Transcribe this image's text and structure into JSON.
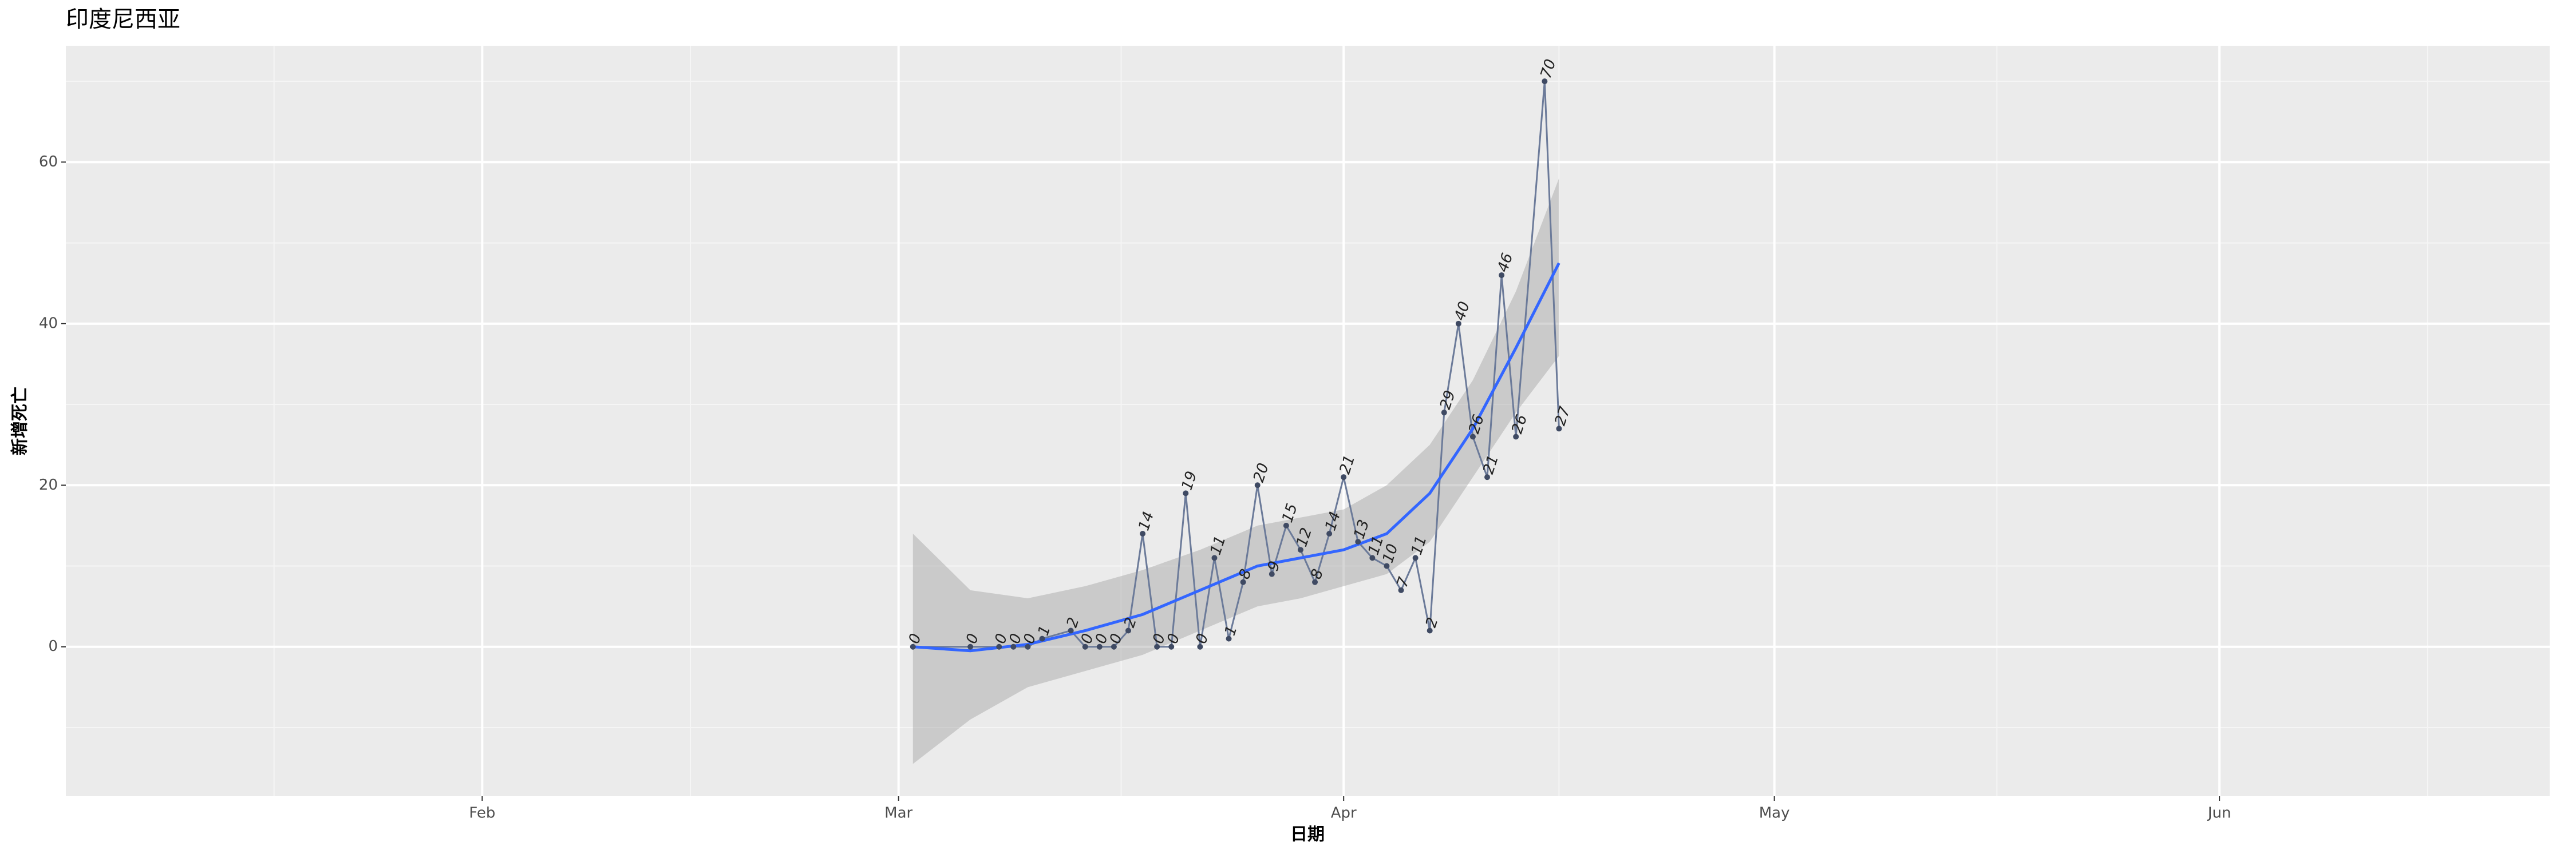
{
  "chart_data": {
    "type": "line",
    "title": "印度尼西亚",
    "x_label": "日期",
    "y_label": "新增死亡",
    "x": [
      "03-02",
      "03-06",
      "03-08",
      "03-09",
      "03-10",
      "03-11",
      "03-13",
      "03-14",
      "03-15",
      "03-16",
      "03-17",
      "03-18",
      "03-19",
      "03-20",
      "03-21",
      "03-22",
      "03-23",
      "03-24",
      "03-25",
      "03-26",
      "03-27",
      "03-28",
      "03-29",
      "03-30",
      "03-31",
      "04-01",
      "04-02",
      "04-03",
      "04-04",
      "04-05",
      "04-06",
      "04-07",
      "04-08",
      "04-09",
      "04-10",
      "04-11",
      "04-12",
      "04-13",
      "04-15",
      "04-16"
    ],
    "values": [
      0,
      0,
      0,
      0,
      0,
      1,
      2,
      0,
      0,
      0,
      2,
      14,
      0,
      0,
      19,
      0,
      11,
      1,
      8,
      20,
      9,
      15,
      12,
      8,
      14,
      21,
      13,
      11,
      10,
      7,
      11,
      2,
      29,
      40,
      26,
      21,
      46,
      26,
      70,
      27
    ],
    "color": "#6b7a99",
    "point_color": "#3f4a63",
    "smooth": {
      "x": [
        "03-02",
        "03-06",
        "03-10",
        "03-14",
        "03-18",
        "03-22",
        "03-26",
        "03-29",
        "04-01",
        "04-04",
        "04-07",
        "04-10",
        "04-13",
        "04-16"
      ],
      "values": [
        0,
        -0.5,
        0.3,
        2,
        4,
        7,
        10,
        11,
        12,
        14,
        19,
        27,
        37,
        47.5
      ],
      "lower": [
        -14.5,
        -9,
        -5,
        -3,
        -1,
        2,
        5,
        6,
        7.5,
        9,
        13,
        21,
        29,
        36
      ],
      "upper": [
        14,
        7,
        6,
        7.5,
        9.5,
        12,
        15,
        16,
        17,
        20,
        25,
        33,
        44,
        58
      ],
      "color": "#3366ff",
      "band_color": "#999999"
    },
    "xlim": [
      "01-03",
      "06-24"
    ],
    "xticks": [
      {
        "value": "02-01",
        "label": "Feb"
      },
      {
        "value": "03-01",
        "label": "Mar"
      },
      {
        "value": "04-01",
        "label": "Apr"
      },
      {
        "value": "05-01",
        "label": "May"
      },
      {
        "value": "06-01",
        "label": "Jun"
      }
    ],
    "ylim": [
      -18.5,
      74.4
    ],
    "yticks": [
      0,
      20,
      40,
      60
    ],
    "grid": true
  }
}
